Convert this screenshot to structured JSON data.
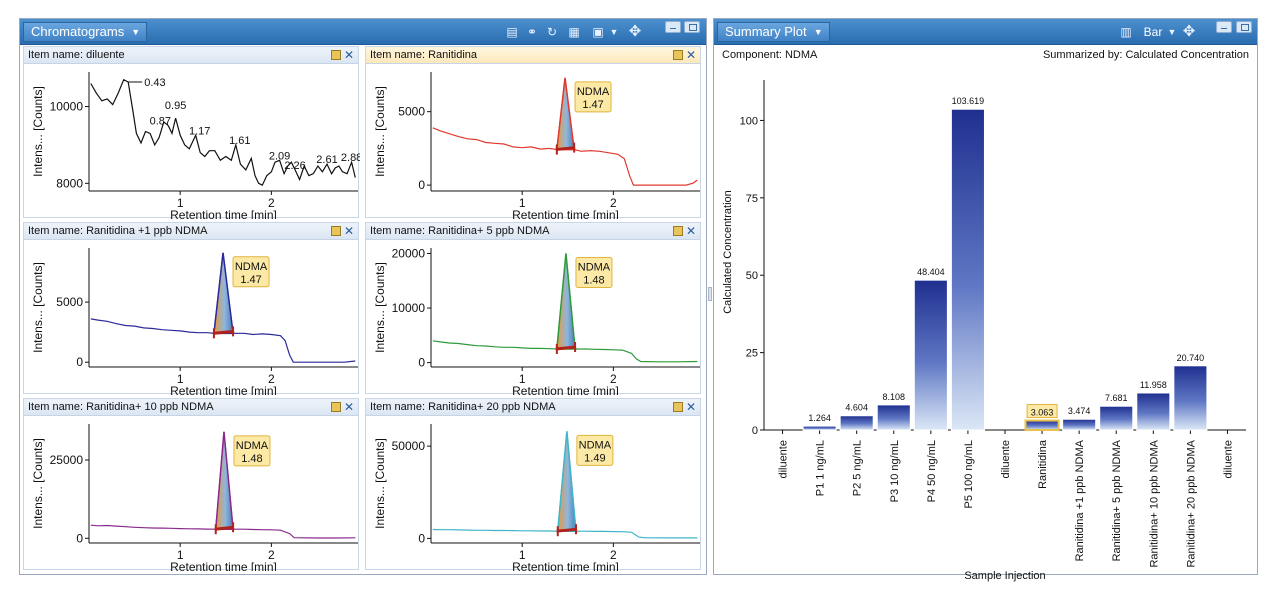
{
  "left_title": "Chromatograms",
  "right_title": "Summary Plot",
  "bar_menu_label": "Bar",
  "x_axis_label": "Retention time [min]",
  "y_axis_label": "Intens... [Counts]",
  "icons": [
    "report-icon",
    "link-icon",
    "refresh-icon",
    "table-icon",
    "export-icon",
    "dropdown-icon",
    "pan-icon",
    "chart-type-icon",
    "pin-icon",
    "close-icon"
  ],
  "chromatograms": [
    {
      "item_label": "Item name: diluente",
      "color": "#111111",
      "xlim": [
        0.0,
        2.95
      ],
      "ylim": [
        7800,
        10900
      ],
      "yticks": [
        8000,
        10000
      ],
      "xticks": [
        1,
        2
      ],
      "trace": [
        [
          0.02,
          10600
        ],
        [
          0.08,
          10350
        ],
        [
          0.14,
          10150
        ],
        [
          0.2,
          10200
        ],
        [
          0.26,
          10050
        ],
        [
          0.32,
          10350
        ],
        [
          0.38,
          10700
        ],
        [
          0.43,
          10640
        ],
        [
          0.48,
          9900
        ],
        [
          0.52,
          9300
        ],
        [
          0.57,
          9050
        ],
        [
          0.62,
          9350
        ],
        [
          0.67,
          9300
        ],
        [
          0.72,
          9000
        ],
        [
          0.77,
          9200
        ],
        [
          0.82,
          9600
        ],
        [
          0.87,
          9500
        ],
        [
          0.91,
          9300
        ],
        [
          0.95,
          9700
        ],
        [
          1.0,
          9250
        ],
        [
          1.05,
          9000
        ],
        [
          1.1,
          8900
        ],
        [
          1.17,
          9250
        ],
        [
          1.22,
          8800
        ],
        [
          1.27,
          8700
        ],
        [
          1.32,
          8850
        ],
        [
          1.38,
          8850
        ],
        [
          1.44,
          8600
        ],
        [
          1.5,
          8700
        ],
        [
          1.56,
          8600
        ],
        [
          1.61,
          9000
        ],
        [
          1.66,
          8500
        ],
        [
          1.72,
          8350
        ],
        [
          1.78,
          8650
        ],
        [
          1.82,
          8200
        ],
        [
          1.86,
          8000
        ],
        [
          1.9,
          7950
        ],
        [
          1.95,
          8200
        ],
        [
          2.0,
          8300
        ],
        [
          2.04,
          8550
        ],
        [
          2.09,
          8600
        ],
        [
          2.14,
          8250
        ],
        [
          2.18,
          8450
        ],
        [
          2.22,
          8550
        ],
        [
          2.26,
          8350
        ],
        [
          2.31,
          8100
        ],
        [
          2.36,
          8450
        ],
        [
          2.41,
          8200
        ],
        [
          2.46,
          8250
        ],
        [
          2.51,
          8450
        ],
        [
          2.56,
          8300
        ],
        [
          2.61,
          8500
        ],
        [
          2.66,
          8250
        ],
        [
          2.7,
          8400
        ],
        [
          2.74,
          8450
        ],
        [
          2.78,
          8300
        ],
        [
          2.83,
          8250
        ],
        [
          2.88,
          8550
        ],
        [
          2.92,
          8150
        ]
      ],
      "peak_labels": [
        {
          "text": "0.43",
          "x": 0.43,
          "y": 10640,
          "dx": 16,
          "dy": 0
        },
        {
          "text": "0.87",
          "x": 0.87,
          "y": 9500,
          "dx": -8,
          "dy": -5
        },
        {
          "text": "0.95",
          "x": 0.95,
          "y": 9700,
          "dx": 0,
          "dy": -13
        },
        {
          "text": "1.17",
          "x": 1.17,
          "y": 9250,
          "dx": 4,
          "dy": -5
        },
        {
          "text": "1.61",
          "x": 1.61,
          "y": 9000,
          "dx": 4,
          "dy": -5
        },
        {
          "text": "2.09",
          "x": 2.09,
          "y": 8600,
          "dx": 0,
          "dy": -5
        },
        {
          "text": "2.26",
          "x": 2.26,
          "y": 8350,
          "dx": 0,
          "dy": -5
        },
        {
          "text": "2.61",
          "x": 2.61,
          "y": 8500,
          "dx": 0,
          "dy": -5
        },
        {
          "text": "2.88",
          "x": 2.88,
          "y": 8550,
          "dx": 0,
          "dy": -5
        }
      ]
    },
    {
      "item_label": "Item name: Ranitidina",
      "color": "#e03a2f",
      "xlim": [
        0.0,
        2.95
      ],
      "ylim": [
        -400,
        7700
      ],
      "yticks": [
        0,
        5000
      ],
      "xticks": [
        1,
        2
      ],
      "trace": [
        [
          0.02,
          3900
        ],
        [
          0.1,
          3700
        ],
        [
          0.2,
          3500
        ],
        [
          0.3,
          3300
        ],
        [
          0.4,
          3150
        ],
        [
          0.5,
          3100
        ],
        [
          0.6,
          2900
        ],
        [
          0.7,
          2850
        ],
        [
          0.8,
          2800
        ],
        [
          0.9,
          2600
        ],
        [
          1.0,
          2550
        ],
        [
          1.1,
          2600
        ],
        [
          1.2,
          2450
        ],
        [
          1.3,
          2500
        ],
        [
          1.38,
          2450
        ],
        [
          1.55,
          2400
        ],
        [
          1.65,
          2300
        ],
        [
          1.75,
          2350
        ],
        [
          1.85,
          2300
        ],
        [
          1.95,
          2200
        ],
        [
          2.05,
          2100
        ],
        [
          2.12,
          1800
        ],
        [
          2.18,
          600
        ],
        [
          2.22,
          0
        ],
        [
          2.4,
          0
        ],
        [
          2.6,
          0
        ],
        [
          2.8,
          0
        ],
        [
          2.88,
          150
        ],
        [
          2.92,
          350
        ]
      ],
      "peak": {
        "start": 1.38,
        "apex": 1.47,
        "end": 1.57,
        "height": 7300,
        "base": 2420
      },
      "badge": {
        "compound": "NDMA",
        "rt": "1.47"
      }
    },
    {
      "item_label": "Item name: Ranitidina +1 ppb NDMA",
      "color": "#2a2a9a",
      "xlim": [
        0.0,
        2.95
      ],
      "ylim": [
        -400,
        9500
      ],
      "yticks": [
        0,
        5000
      ],
      "xticks": [
        1,
        2
      ],
      "trace": [
        [
          0.02,
          3600
        ],
        [
          0.1,
          3500
        ],
        [
          0.2,
          3400
        ],
        [
          0.3,
          3200
        ],
        [
          0.4,
          3050
        ],
        [
          0.5,
          3000
        ],
        [
          0.6,
          2850
        ],
        [
          0.7,
          2800
        ],
        [
          0.8,
          2700
        ],
        [
          0.9,
          2650
        ],
        [
          1.0,
          2600
        ],
        [
          1.1,
          2500
        ],
        [
          1.2,
          2450
        ],
        [
          1.3,
          2450
        ],
        [
          1.37,
          2400
        ],
        [
          1.6,
          2400
        ],
        [
          1.7,
          2400
        ],
        [
          1.8,
          2300
        ],
        [
          1.9,
          2350
        ],
        [
          2.0,
          2300
        ],
        [
          2.1,
          2200
        ],
        [
          2.15,
          1800
        ],
        [
          2.2,
          600
        ],
        [
          2.24,
          0
        ],
        [
          2.5,
          0
        ],
        [
          2.8,
          0
        ],
        [
          2.92,
          100
        ]
      ],
      "peak": {
        "start": 1.37,
        "apex": 1.47,
        "end": 1.58,
        "height": 9100,
        "base": 2400
      },
      "badge": {
        "compound": "NDMA",
        "rt": "1.47"
      }
    },
    {
      "item_label": "Item name: Ranitidina+ 5 ppb NDMA",
      "color": "#2e9b3b",
      "xlim": [
        0.0,
        2.95
      ],
      "ylim": [
        -800,
        21000
      ],
      "yticks": [
        0,
        10000,
        20000
      ],
      "xticks": [
        1,
        2
      ],
      "trace": [
        [
          0.02,
          4000
        ],
        [
          0.1,
          3800
        ],
        [
          0.2,
          3600
        ],
        [
          0.3,
          3500
        ],
        [
          0.4,
          3300
        ],
        [
          0.5,
          3100
        ],
        [
          0.6,
          3050
        ],
        [
          0.7,
          2900
        ],
        [
          0.8,
          2800
        ],
        [
          0.9,
          2800
        ],
        [
          1.0,
          2700
        ],
        [
          1.1,
          2600
        ],
        [
          1.2,
          2600
        ],
        [
          1.3,
          2550
        ],
        [
          1.38,
          2500
        ],
        [
          1.6,
          2500
        ],
        [
          1.7,
          2500
        ],
        [
          1.8,
          2450
        ],
        [
          1.9,
          2400
        ],
        [
          2.0,
          2350
        ],
        [
          2.1,
          2300
        ],
        [
          2.2,
          1700
        ],
        [
          2.25,
          700
        ],
        [
          2.3,
          200
        ],
        [
          2.5,
          150
        ],
        [
          2.7,
          150
        ],
        [
          2.92,
          200
        ]
      ],
      "peak": {
        "start": 1.38,
        "apex": 1.48,
        "end": 1.58,
        "height": 20000,
        "base": 2500
      },
      "badge": {
        "compound": "NDMA",
        "rt": "1.48"
      }
    },
    {
      "item_label": "Item name: Ranitidina+ 10 ppb NDMA",
      "color": "#8b2a8e",
      "xlim": [
        0.0,
        2.95
      ],
      "ylim": [
        -1500,
        36500
      ],
      "yticks": [
        0,
        25000
      ],
      "xticks": [
        1,
        2
      ],
      "trace": [
        [
          0.02,
          4200
        ],
        [
          0.1,
          4000
        ],
        [
          0.2,
          4100
        ],
        [
          0.3,
          3900
        ],
        [
          0.4,
          3700
        ],
        [
          0.5,
          3500
        ],
        [
          0.6,
          3400
        ],
        [
          0.7,
          3300
        ],
        [
          0.8,
          3250
        ],
        [
          0.9,
          3200
        ],
        [
          1.0,
          3100
        ],
        [
          1.1,
          3050
        ],
        [
          1.2,
          3000
        ],
        [
          1.3,
          2950
        ],
        [
          1.39,
          2900
        ],
        [
          1.6,
          2900
        ],
        [
          1.7,
          2900
        ],
        [
          1.8,
          2800
        ],
        [
          1.9,
          2750
        ],
        [
          2.0,
          2700
        ],
        [
          2.1,
          2600
        ],
        [
          2.2,
          1500
        ],
        [
          2.25,
          200
        ],
        [
          2.5,
          100
        ],
        [
          2.7,
          100
        ],
        [
          2.92,
          150
        ]
      ],
      "peak": {
        "start": 1.39,
        "apex": 1.48,
        "end": 1.58,
        "height": 34000,
        "base": 2900
      },
      "badge": {
        "compound": "NDMA",
        "rt": "1.48"
      }
    },
    {
      "item_label": "Item name: Ranitidina+ 20 ppb NDMA",
      "color": "#3fb5c8",
      "xlim": [
        0.0,
        2.95
      ],
      "ylim": [
        -2500,
        62000
      ],
      "yticks": [
        0,
        50000
      ],
      "xticks": [
        1,
        2
      ],
      "trace": [
        [
          0.02,
          4800
        ],
        [
          0.1,
          4700
        ],
        [
          0.2,
          4700
        ],
        [
          0.3,
          4600
        ],
        [
          0.4,
          4500
        ],
        [
          0.5,
          4400
        ],
        [
          0.6,
          4400
        ],
        [
          0.7,
          4300
        ],
        [
          0.8,
          4300
        ],
        [
          0.9,
          4200
        ],
        [
          1.0,
          4100
        ],
        [
          1.1,
          4100
        ],
        [
          1.2,
          4000
        ],
        [
          1.3,
          4000
        ],
        [
          1.39,
          3900
        ],
        [
          1.6,
          3900
        ],
        [
          1.7,
          3900
        ],
        [
          1.8,
          3800
        ],
        [
          1.9,
          3800
        ],
        [
          2.0,
          3700
        ],
        [
          2.1,
          3600
        ],
        [
          2.2,
          3300
        ],
        [
          2.28,
          700
        ],
        [
          2.35,
          300
        ],
        [
          2.6,
          250
        ],
        [
          2.92,
          250
        ]
      ],
      "peak": {
        "start": 1.39,
        "apex": 1.49,
        "end": 1.59,
        "height": 58000,
        "base": 3900
      },
      "badge": {
        "compound": "NDMA",
        "rt": "1.49"
      }
    }
  ],
  "summary": {
    "component_label": "Component: NDMA",
    "summarized_by": "Summarized by: Calculated Concentration"
  },
  "chart_data": {
    "type": "bar",
    "title": "Summary Plot",
    "xlabel": "Sample Injection",
    "ylabel": "Calculated Concentration",
    "ylim": [
      0,
      115
    ],
    "yticks": [
      0,
      25,
      50,
      75,
      100
    ],
    "categories": [
      "diluente",
      "P1 1 ng/mL",
      "P2 5 ng/mL",
      "P3 10 ng/mL",
      "P4 50 ng/mL",
      "P5 100 ng/mL",
      "diluente",
      "Ranitidina",
      "Ranitidina +1 ppb NDMA",
      "Ranitidina+ 5 ppb NDMA",
      "Ranitidina+ 10 ppb NDMA",
      "Ranitidina+ 20 ppb NDMA",
      "diluente"
    ],
    "values": [
      null,
      1.264,
      4.604,
      8.108,
      48.404,
      103.619,
      null,
      3.063,
      3.474,
      7.681,
      11.958,
      20.74,
      null
    ],
    "value_labels": [
      "",
      "1.264",
      "4.604",
      "8.108",
      "48.404",
      "103.619",
      "",
      "3.063",
      "3.474",
      "7.681",
      "11.958",
      "20.740",
      ""
    ],
    "highlighted": "Ranitidina"
  }
}
